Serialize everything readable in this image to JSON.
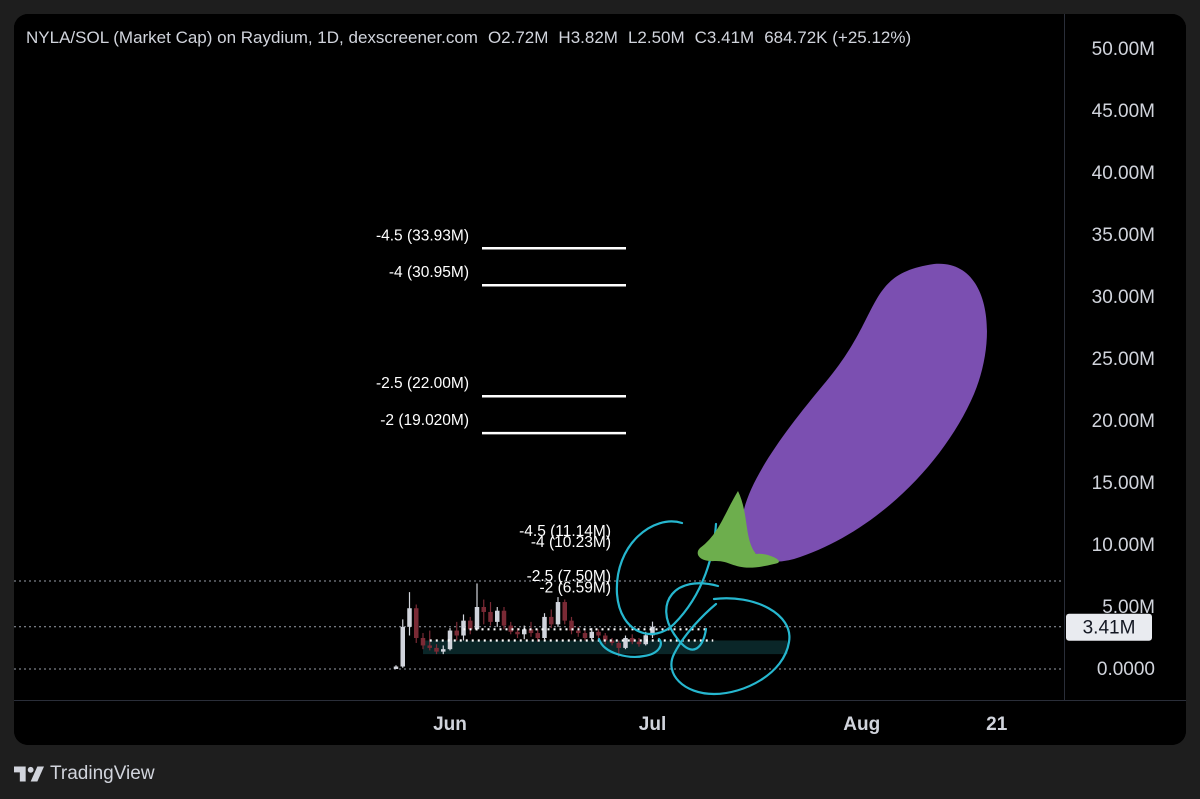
{
  "header": {
    "symbol": "NYLA/SOL (Market Cap) on Raydium, 1D, dexscreener.com",
    "open": "O2.72M",
    "high": "H3.82M",
    "low": "L2.50M",
    "close": "C3.41M",
    "change": "684.72K (+25.12%)"
  },
  "footer": {
    "brand": "TradingView",
    "logo_icon": "tradingview-logo-icon"
  },
  "colors": {
    "background": "#000000",
    "frame": "#1e1e1e",
    "text": "#d1d4dc",
    "up": "#d1d4dc",
    "down": "#7a2a35",
    "drawing": "#26b7cf",
    "eggplant": "#7b4fb1",
    "stem": "#6dae4d"
  },
  "chart_data": {
    "type": "candlestick",
    "y_axis": {
      "range": [
        -2000000,
        52000000
      ],
      "ticks": [
        0,
        5000000,
        10000000,
        15000000,
        20000000,
        25000000,
        30000000,
        35000000,
        40000000,
        45000000,
        50000000
      ],
      "tick_labels": [
        "0.0000",
        "5.00M",
        "10.00M",
        "15.00M",
        "20.00M",
        "25.00M",
        "30.00M",
        "35.00M",
        "40.00M",
        "45.00M",
        "50.00M"
      ]
    },
    "x_axis": {
      "range": [
        "2024-05-05",
        "2024-08-28"
      ],
      "ticks": [
        "2024-06-01",
        "2024-07-01",
        "2024-08-01",
        "2024-08-21"
      ],
      "tick_labels": [
        "Jun",
        "Jul",
        "Aug",
        "21"
      ]
    },
    "last_price": {
      "value": 3410000,
      "label": "3.41M"
    },
    "reference_lines": [
      7100000,
      3410000,
      0
    ],
    "fib_levels": [
      {
        "label": "-4.5 (33.93M)",
        "value": 33930000
      },
      {
        "label": "-4 (30.95M)",
        "value": 30950000
      },
      {
        "label": "-2.5 (22.00M)",
        "value": 22000000
      },
      {
        "label": "-2 (19.020M)",
        "value": 19020000
      },
      {
        "label": "-4.5 (11.14M)",
        "value": 11140000
      },
      {
        "label": "-4 (10.23M)",
        "value": 10230000
      },
      {
        "label": "-2.5 (7.50M)",
        "value": 7500000
      },
      {
        "label": "-2 (6.59M)",
        "value": 6590000
      }
    ],
    "candles": [
      {
        "date": "2024-05-24",
        "o": 0,
        "h": 300000,
        "l": 0,
        "c": 200000
      },
      {
        "date": "2024-05-25",
        "o": 200000,
        "h": 4000000,
        "l": 100000,
        "c": 3400000
      },
      {
        "date": "2024-05-26",
        "o": 3400000,
        "h": 6200000,
        "l": 2700000,
        "c": 4900000
      },
      {
        "date": "2024-05-27",
        "o": 4900000,
        "h": 5200000,
        "l": 2100000,
        "c": 2500000
      },
      {
        "date": "2024-05-28",
        "o": 2500000,
        "h": 2900000,
        "l": 1600000,
        "c": 1900000
      },
      {
        "date": "2024-05-29",
        "o": 1900000,
        "h": 3100000,
        "l": 1500000,
        "c": 1700000
      },
      {
        "date": "2024-05-30",
        "o": 1700000,
        "h": 2000000,
        "l": 1200000,
        "c": 1400000
      },
      {
        "date": "2024-05-31",
        "o": 1400000,
        "h": 1900000,
        "l": 1200000,
        "c": 1600000
      },
      {
        "date": "2024-06-01",
        "o": 1600000,
        "h": 3300000,
        "l": 1500000,
        "c": 3100000
      },
      {
        "date": "2024-06-02",
        "o": 3100000,
        "h": 3800000,
        "l": 2300000,
        "c": 2700000
      },
      {
        "date": "2024-06-03",
        "o": 2700000,
        "h": 4400000,
        "l": 2300000,
        "c": 3900000
      },
      {
        "date": "2024-06-04",
        "o": 3900000,
        "h": 4200000,
        "l": 2800000,
        "c": 3200000
      },
      {
        "date": "2024-06-05",
        "o": 3200000,
        "h": 6900000,
        "l": 3100000,
        "c": 5000000
      },
      {
        "date": "2024-06-06",
        "o": 5000000,
        "h": 5600000,
        "l": 3600000,
        "c": 4600000
      },
      {
        "date": "2024-06-07",
        "o": 4600000,
        "h": 5400000,
        "l": 3500000,
        "c": 3800000
      },
      {
        "date": "2024-06-08",
        "o": 3800000,
        "h": 5000000,
        "l": 3400000,
        "c": 4700000
      },
      {
        "date": "2024-06-09",
        "o": 4700000,
        "h": 5000000,
        "l": 3200000,
        "c": 3500000
      },
      {
        "date": "2024-06-10",
        "o": 3500000,
        "h": 3800000,
        "l": 2800000,
        "c": 3000000
      },
      {
        "date": "2024-06-11",
        "o": 3000000,
        "h": 3300000,
        "l": 2500000,
        "c": 2800000
      },
      {
        "date": "2024-06-12",
        "o": 2800000,
        "h": 3500000,
        "l": 2400000,
        "c": 3200000
      },
      {
        "date": "2024-06-13",
        "o": 3200000,
        "h": 3800000,
        "l": 2600000,
        "c": 2900000
      },
      {
        "date": "2024-06-14",
        "o": 2900000,
        "h": 3200000,
        "l": 2200000,
        "c": 2500000
      },
      {
        "date": "2024-06-15",
        "o": 2500000,
        "h": 4500000,
        "l": 2400000,
        "c": 4200000
      },
      {
        "date": "2024-06-16",
        "o": 4200000,
        "h": 4800000,
        "l": 3300000,
        "c": 3600000
      },
      {
        "date": "2024-06-17",
        "o": 3600000,
        "h": 5800000,
        "l": 3400000,
        "c": 5400000
      },
      {
        "date": "2024-06-18",
        "o": 5400000,
        "h": 5600000,
        "l": 3600000,
        "c": 3900000
      },
      {
        "date": "2024-06-19",
        "o": 3900000,
        "h": 4200000,
        "l": 2800000,
        "c": 3100000
      },
      {
        "date": "2024-06-20",
        "o": 3100000,
        "h": 3400000,
        "l": 2600000,
        "c": 2900000
      },
      {
        "date": "2024-06-21",
        "o": 2900000,
        "h": 3100000,
        "l": 2300000,
        "c": 2500000
      },
      {
        "date": "2024-06-22",
        "o": 2500000,
        "h": 3300000,
        "l": 2300000,
        "c": 3000000
      },
      {
        "date": "2024-06-23",
        "o": 3000000,
        "h": 3200000,
        "l": 2400000,
        "c": 2700000
      },
      {
        "date": "2024-06-24",
        "o": 2700000,
        "h": 2900000,
        "l": 2000000,
        "c": 2300000
      },
      {
        "date": "2024-06-25",
        "o": 2300000,
        "h": 2500000,
        "l": 1900000,
        "c": 2100000
      },
      {
        "date": "2024-06-26",
        "o": 2100000,
        "h": 2300000,
        "l": 1000000,
        "c": 1700000
      },
      {
        "date": "2024-06-27",
        "o": 1700000,
        "h": 2700000,
        "l": 1600000,
        "c": 2500000
      },
      {
        "date": "2024-06-28",
        "o": 2500000,
        "h": 2800000,
        "l": 2000000,
        "c": 2200000
      },
      {
        "date": "2024-06-29",
        "o": 2200000,
        "h": 2500000,
        "l": 1800000,
        "c": 2000000
      },
      {
        "date": "2024-06-30",
        "o": 2000000,
        "h": 3000000,
        "l": 1900000,
        "c": 2720000
      },
      {
        "date": "2024-07-01",
        "o": 2720000,
        "h": 3820000,
        "l": 2500000,
        "c": 3410000
      }
    ]
  }
}
